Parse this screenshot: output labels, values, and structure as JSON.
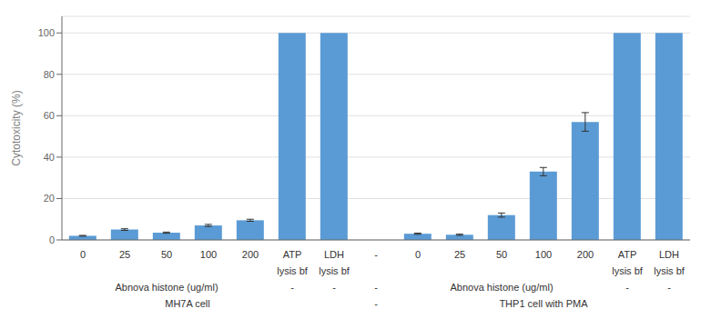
{
  "chart_data": {
    "type": "bar",
    "categories": [
      "0",
      "25",
      "50",
      "100",
      "200",
      "ATP",
      "LDH",
      "-",
      "0",
      "25",
      "50",
      "100",
      "200",
      "ATP",
      "LDH"
    ],
    "values": [
      2.0,
      5.0,
      3.5,
      7.0,
      9.5,
      100.0,
      100.0,
      null,
      3.0,
      2.5,
      12.0,
      33.0,
      57.0,
      100.0,
      100.0
    ],
    "errors": [
      0.2,
      0.4,
      0.3,
      0.5,
      0.5,
      0.0,
      0.0,
      null,
      0.3,
      0.3,
      1.0,
      2.0,
      4.5,
      0.0,
      0.0
    ],
    "color": "#5B9BD5",
    "ylabel": "Cytotoxicity  (%)",
    "ylim": [
      0,
      108
    ],
    "yticks": [
      0,
      20,
      40,
      60,
      80,
      100
    ],
    "grid": true,
    "label_rows": [
      [
        {
          "text": "lysis bf",
          "first": 5,
          "last": 5
        },
        {
          "text": "lysis bf",
          "first": 6,
          "last": 6
        },
        {
          "text": "lysis bf",
          "first": 13,
          "last": 13
        },
        {
          "text": "lysis bf",
          "first": 14,
          "last": 14
        }
      ],
      [
        {
          "text": "Abnova histone (ug/ml)",
          "first": 0,
          "last": 4
        },
        {
          "text": "-",
          "first": 5,
          "last": 5
        },
        {
          "text": "-",
          "first": 6,
          "last": 6
        },
        {
          "text": "-",
          "first": 7,
          "last": 7
        },
        {
          "text": "Abnova histone (ug/ml)",
          "first": 8,
          "last": 12
        },
        {
          "text": "-",
          "first": 13,
          "last": 13
        },
        {
          "text": "-",
          "first": 14,
          "last": 14
        }
      ],
      [
        {
          "text": "MH7A cell",
          "first": 0,
          "last": 5
        },
        {
          "text": "-",
          "first": 7,
          "last": 7
        },
        {
          "text": "THP1 cell with PMA",
          "first": 8,
          "last": 14
        }
      ]
    ]
  }
}
